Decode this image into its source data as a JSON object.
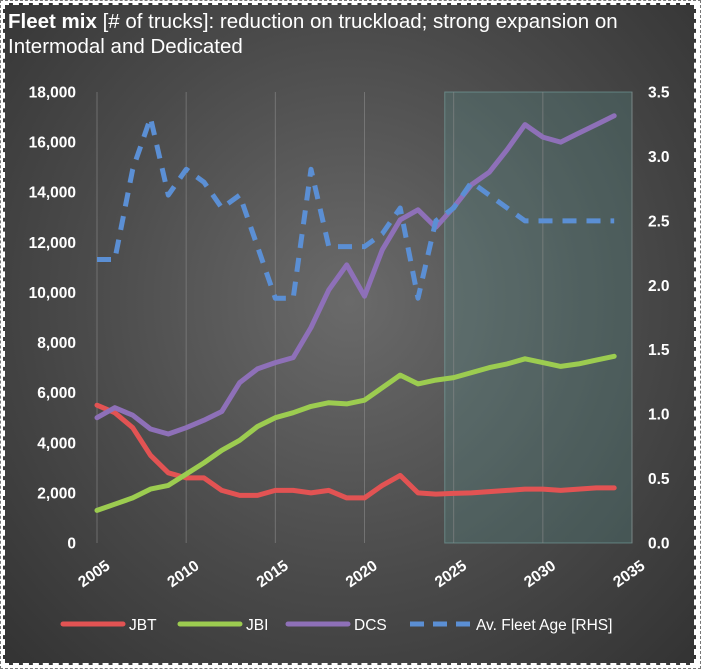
{
  "title": {
    "bold": "Fleet mix",
    "rest": " [# of trucks]: reduction on truckload; strong expansion on Intermodal and Dedicated"
  },
  "chart_data": {
    "type": "line",
    "x_ticks": [
      2005,
      2010,
      2015,
      2020,
      2025,
      2030,
      2035
    ],
    "y_ticks": [
      "0",
      "2,000",
      "4,000",
      "6,000",
      "8,000",
      "10,000",
      "12,000",
      "14,000",
      "16,000",
      "18,000"
    ],
    "y2_ticks": [
      "0.0",
      "0.5",
      "1.0",
      "1.5",
      "2.0",
      "2.5",
      "3.0",
      "3.5"
    ],
    "xlim": [
      2005,
      2035
    ],
    "ylim": [
      0,
      18000
    ],
    "y2lim": [
      0,
      3.5
    ],
    "projection_shading": {
      "from": 2024.5,
      "to": 2035
    },
    "grid": "vertical",
    "legend_position": "bottom",
    "x": [
      2005,
      2006,
      2007,
      2008,
      2009,
      2010,
      2011,
      2012,
      2013,
      2014,
      2015,
      2016,
      2017,
      2018,
      2019,
      2020,
      2021,
      2022,
      2023,
      2024,
      2025,
      2026,
      2027,
      2028,
      2029,
      2030,
      2031,
      2032,
      2033,
      2034
    ],
    "series": [
      {
        "name": "JBT",
        "color": "#e25353",
        "axis": "left",
        "style": "solid",
        "values": [
          5500,
          5200,
          4600,
          3500,
          2800,
          2600,
          2600,
          2100,
          1900,
          1900,
          2100,
          2100,
          2000,
          2100,
          1800,
          1800,
          2300,
          2700,
          2000,
          1950,
          1980,
          2000,
          2050,
          2100,
          2150,
          2150,
          2100,
          2150,
          2200,
          2200
        ]
      },
      {
        "name": "JBI",
        "color": "#9ccc50",
        "axis": "left",
        "style": "solid",
        "values": [
          1300,
          1550,
          1800,
          2150,
          2300,
          2750,
          3200,
          3700,
          4100,
          4650,
          5000,
          5200,
          5450,
          5600,
          5550,
          5700,
          6200,
          6700,
          6350,
          6500,
          6600,
          6800,
          7000,
          7150,
          7350,
          7200,
          7050,
          7150,
          7300,
          7450
        ]
      },
      {
        "name": "DCS",
        "color": "#8e70b8",
        "axis": "left",
        "style": "solid",
        "values": [
          5000,
          5400,
          5100,
          4550,
          4350,
          4600,
          4900,
          5250,
          6400,
          6950,
          7200,
          7400,
          8600,
          10100,
          11100,
          9850,
          11700,
          12900,
          13300,
          12600,
          13400,
          14300,
          14800,
          15700,
          16700,
          16200,
          16000,
          16350,
          16700,
          17050
        ]
      },
      {
        "name": "Av. Fleet Age [RHS]",
        "color": "#5b8fd4",
        "axis": "right",
        "style": "dashed",
        "values": [
          2.2,
          2.2,
          2.9,
          3.3,
          2.7,
          2.9,
          2.8,
          2.6,
          2.7,
          2.3,
          1.9,
          1.9,
          2.9,
          2.3,
          2.3,
          2.3,
          2.4,
          2.6,
          1.9,
          2.5,
          2.6,
          2.8,
          2.7,
          2.6,
          2.5,
          2.5,
          2.5,
          2.5,
          2.5,
          2.5
        ]
      }
    ]
  }
}
